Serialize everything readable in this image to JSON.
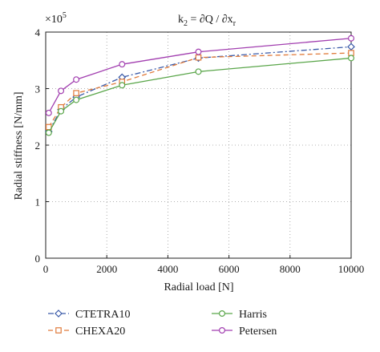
{
  "chart_data": {
    "type": "line",
    "title": "k₂ = ∂Q / ∂xᵣ",
    "title_parts": {
      "base": "k",
      "base_sub": "2",
      "mid": " = ∂Q / ∂x",
      "end_sub": "r"
    },
    "xlabel": "Radial load [N]",
    "ylabel": "Radial stiffness [N/mm]",
    "y_multiplier": {
      "base": "×10",
      "exp": "5"
    },
    "xlim": [
      0,
      10000
    ],
    "ylim": [
      0,
      4
    ],
    "xticks": [
      0,
      2000,
      4000,
      6000,
      8000,
      10000
    ],
    "yticks": [
      0,
      1,
      2,
      3,
      4
    ],
    "grid": true,
    "legend_position": "bottom",
    "series": [
      {
        "name": "CTETRA10",
        "color": "#3b5ba9",
        "dash": "7,3,2,3",
        "marker": "diamond",
        "x": [
          100,
          500,
          1000,
          2500,
          5000,
          10000
        ],
        "y": [
          2.24,
          2.63,
          2.85,
          3.2,
          3.54,
          3.74
        ]
      },
      {
        "name": "CHEXA20",
        "color": "#e07a3a",
        "dash": "6,4",
        "marker": "square",
        "x": [
          100,
          500,
          1000,
          2500,
          5000,
          10000
        ],
        "y": [
          2.32,
          2.67,
          2.92,
          3.12,
          3.55,
          3.63
        ]
      },
      {
        "name": "Harris",
        "color": "#5aa64a",
        "dash": "",
        "marker": "circle",
        "x": [
          100,
          500,
          1000,
          2500,
          5000,
          10000
        ],
        "y": [
          2.22,
          2.6,
          2.8,
          3.06,
          3.3,
          3.54
        ]
      },
      {
        "name": "Petersen",
        "color": "#a23fb0",
        "dash": "",
        "marker": "circle",
        "x": [
          100,
          500,
          1000,
          2500,
          5000,
          10000
        ],
        "y": [
          2.57,
          2.96,
          3.16,
          3.43,
          3.65,
          3.89
        ]
      }
    ]
  }
}
